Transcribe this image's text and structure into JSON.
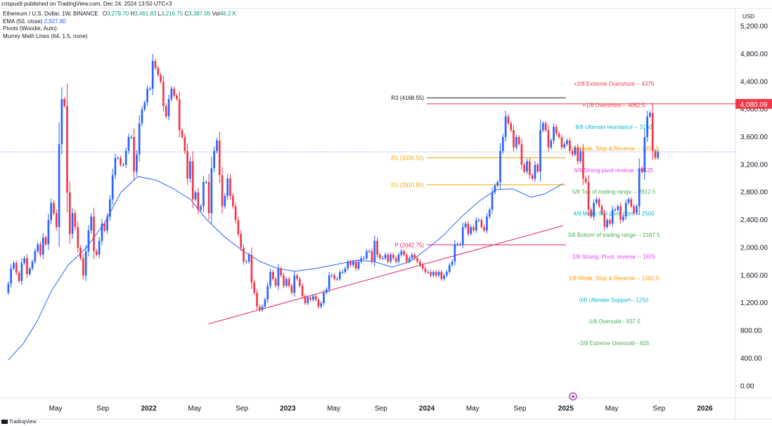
{
  "header": {
    "text": "crispus9 published on TradingView.com, Dec 24, 2024 13:50 UTC+3"
  },
  "info": {
    "symbol": "Ethereum / U.S. Dollar, 1W, BINANCE",
    "o_label": "O",
    "o": "3,279.70",
    "h_label": "H",
    "h": "3,461.83",
    "l_label": "L",
    "l": "3,216.75",
    "c_label": "C",
    "c": "3,387.05",
    "v_label": "Vol",
    "v": "46.2 K",
    "ema_label": "EMA (50, close)",
    "ema": "2,927.80",
    "pivots_label": "Pivots (Woodie, Auto)",
    "murrey_label": "Murrey Math Lines (64, 1.5, none)"
  },
  "footer": {
    "brand": "TradingView"
  },
  "colors": {
    "up": "#2962ff",
    "down": "#f23645",
    "ema": "#2962ff",
    "trendline": "#e91e63",
    "current_price": "#f23645",
    "last_close_line": "#2962ff"
  },
  "chart_data": {
    "type": "candlestick",
    "currency": "USD",
    "y_ticks": [
      "5,200.00",
      "4,800.00",
      "4,400.00",
      "4,000.00",
      "3,600.00",
      "3,200.00",
      "2,800.00",
      "2,400.00",
      "2,000.00",
      "1,600.00",
      "1,200.00",
      "800.00",
      "400.00",
      "0.00"
    ],
    "y_tick_values": [
      5200,
      4800,
      4400,
      4000,
      3600,
      3200,
      2800,
      2400,
      2000,
      1600,
      1200,
      800,
      400,
      0
    ],
    "ylim": [
      -170,
      5460
    ],
    "x_tick_labels": [
      "May",
      "Sep",
      "2022",
      "May",
      "Sep",
      "2023",
      "May",
      "Sep",
      "2024",
      "May",
      "Sep",
      "2025",
      "May",
      "Sep",
      "2026"
    ],
    "x_tick_dates": [
      2021.33,
      2021.67,
      2022.0,
      2022.33,
      2022.67,
      2023.0,
      2023.33,
      2023.67,
      2024.0,
      2024.33,
      2024.67,
      2025.0,
      2025.33,
      2025.67,
      2026.0
    ],
    "xlim": [
      2020.93,
      2026.22
    ],
    "bold_ticks": [
      2,
      5,
      8,
      11,
      14
    ],
    "current_price_label": "4,080.09",
    "current_price": 4080.09,
    "last_close": 3387.05,
    "candles": {
      "start": 2020.99,
      "week": 0.01923,
      "open_first": 1350,
      "closes": [
        1480,
        1700,
        1780,
        1640,
        1520,
        1780,
        1850,
        1620,
        1700,
        1800,
        1950,
        2050,
        1900,
        2150,
        2050,
        2400,
        2650,
        2500,
        2300,
        3500,
        4150,
        4050,
        2800,
        2200,
        2500,
        2300,
        2000,
        1850,
        1600,
        1950,
        2250,
        2450,
        1950,
        1900,
        2100,
        2350,
        2250,
        2450,
        2700,
        3050,
        3300,
        3300,
        3200,
        3200,
        3400,
        3600,
        3600,
        3100,
        3350,
        3800,
        4000,
        4100,
        4300,
        4300,
        4700,
        4600,
        4500,
        4400,
        4050,
        3900,
        4150,
        4300,
        4200,
        4150,
        3700,
        3600,
        3400,
        3000,
        3250,
        2700,
        2800,
        2550,
        2600,
        2950,
        2950,
        2500,
        3150,
        3400,
        3550,
        3050,
        2600,
        2750,
        3000,
        2750,
        2600,
        2400,
        2200,
        2000,
        1800,
        1800,
        1900,
        1500,
        1350,
        1150,
        1100,
        1150,
        1250,
        1450,
        1650,
        1550,
        1450,
        1700,
        1600,
        1450,
        1550,
        1450,
        1350,
        1600,
        1550,
        1450,
        1300,
        1200,
        1280,
        1250,
        1300,
        1250,
        1150,
        1200,
        1350,
        1400,
        1600,
        1600,
        1550,
        1550,
        1650,
        1650,
        1700,
        1800,
        1750,
        1800,
        1700,
        1800,
        1850,
        1850,
        1950,
        1950,
        1800,
        2100,
        1900,
        1850,
        1850,
        1900,
        1800,
        1900,
        1850,
        1800,
        1900,
        1950,
        1900,
        1800,
        1850,
        1900,
        1850,
        1800,
        1750,
        1700,
        1650,
        1650,
        1600,
        1650,
        1600,
        1650,
        1550,
        1600,
        1650,
        1750,
        1800,
        2050,
        2050,
        2050,
        2300,
        2350,
        2200,
        2300,
        2250,
        2400,
        2400,
        2300,
        2250,
        2450,
        2550,
        2800,
        2900,
        2950,
        3400,
        3600,
        3900,
        3800,
        3700,
        3450,
        3600,
        3500,
        3200,
        3100,
        3250,
        3050,
        3000,
        3200,
        3100,
        3700,
        3800,
        3700,
        3450,
        3550,
        3750,
        3650,
        3600,
        3450,
        3500,
        3550,
        3400,
        3350,
        3450,
        3250,
        3400,
        3000,
        2950,
        2550,
        2450,
        2650,
        2700,
        2600,
        2500,
        2300,
        2400,
        2350,
        2550,
        2550,
        2600,
        2400,
        2450,
        2650,
        2700,
        2600,
        2500,
        2600,
        3150,
        3100,
        3600,
        3900,
        3950,
        3400,
        3300,
        3390
      ],
      "wick_scale": 0.26
    },
    "ema": {
      "label": "EMA (50, close)",
      "points": [
        [
          2020.99,
          380
        ],
        [
          2021.1,
          620
        ],
        [
          2021.2,
          950
        ],
        [
          2021.3,
          1380
        ],
        [
          2021.42,
          1750
        ],
        [
          2021.55,
          2000
        ],
        [
          2021.68,
          2350
        ],
        [
          2021.8,
          2800
        ],
        [
          2021.92,
          3030
        ],
        [
          2022.05,
          2980
        ],
        [
          2022.18,
          2850
        ],
        [
          2022.3,
          2700
        ],
        [
          2022.42,
          2400
        ],
        [
          2022.55,
          2150
        ],
        [
          2022.68,
          1950
        ],
        [
          2022.8,
          1800
        ],
        [
          2022.93,
          1700
        ],
        [
          2023.05,
          1660
        ],
        [
          2023.2,
          1700
        ],
        [
          2023.35,
          1760
        ],
        [
          2023.5,
          1820
        ],
        [
          2023.62,
          1800
        ],
        [
          2023.75,
          1720
        ],
        [
          2023.88,
          1800
        ],
        [
          2024.0,
          1980
        ],
        [
          2024.12,
          2180
        ],
        [
          2024.25,
          2450
        ],
        [
          2024.38,
          2680
        ],
        [
          2024.5,
          2840
        ],
        [
          2024.62,
          2850
        ],
        [
          2024.75,
          2730
        ],
        [
          2024.85,
          2780
        ],
        [
          2024.98,
          2927
        ]
      ]
    },
    "trendline": {
      "from": [
        2022.43,
        900
      ],
      "to": [
        2024.98,
        2320
      ]
    },
    "pivots": [
      {
        "label": "R3 (4168.55)",
        "value": 4168.55,
        "color": "#131722"
      },
      {
        "label": "R2 (3300.50)",
        "value": 3300.5,
        "color": "#f7a600"
      },
      {
        "label": "R1 (2910.80)",
        "value": 2910.8,
        "color": "#f7a600"
      },
      {
        "label": "P (2042.75)",
        "value": 2042.75,
        "color": "#e91e63"
      }
    ],
    "murrey_lines": [
      {
        "label": "+2/8 Extreme Overshoot --  4375",
        "value": 4375,
        "color": "#f23645"
      },
      {
        "label": "+1/8 Overshoot --  4062.5",
        "value": 4062.5,
        "color": "#f23645"
      },
      {
        "label": "8/8 Ultimate resistance --  3750",
        "value": 3750,
        "color": "#00bcd4"
      },
      {
        "label": "7/8 Weak, Stop & Reverse --  3437.5",
        "value": 3437.5,
        "color": "#ff9800"
      },
      {
        "label": "6/8 Strong pivot reverse --  3125",
        "value": 3125,
        "color": "#e040fb"
      },
      {
        "label": "5/8 Top of trading range --  2812.5",
        "value": 2812.5,
        "color": "#4caf50"
      },
      {
        "label": "4/8 Major S/R pivot point --  2500",
        "value": 2500,
        "color": "#00bcd4"
      },
      {
        "label": "3/8 Bottom of trading range --  2187.5",
        "value": 2187.5,
        "color": "#4caf50"
      },
      {
        "label": "2/8 Strong, Pivot, reverse --  1875",
        "value": 1875,
        "color": "#e040fb"
      },
      {
        "label": "1/8 Weak, Stop & Reverse --  1562.5",
        "value": 1562.5,
        "color": "#ff9800"
      },
      {
        "label": "0/8 Ultimate Support--  1250",
        "value": 1250,
        "color": "#00bcd4"
      },
      {
        "label": "-1/8 Oversold--  937.5",
        "value": 937.5,
        "color": "#4caf50"
      },
      {
        "label": "-2/8 Extreme Oversold--  625",
        "value": 625,
        "color": "#4caf50"
      }
    ]
  }
}
